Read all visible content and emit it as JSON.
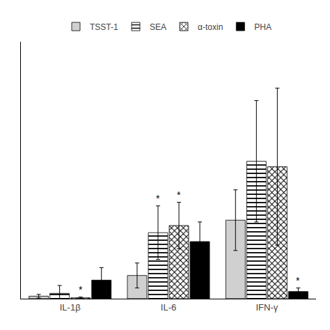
{
  "chart_data": {
    "type": "bar",
    "categories": [
      "IL-1β",
      "IL-6",
      "IFN-γ"
    ],
    "series": [
      {
        "name": "TSST-1",
        "color": "#d0d0d0",
        "values": [
          0.7,
          6.5,
          22.0
        ],
        "errors": [
          0.5,
          3.5,
          8.5
        ]
      },
      {
        "name": "SEA",
        "color": "white",
        "values": [
          1.5,
          18.5,
          38.5
        ],
        "errors": [
          2.2,
          7.5,
          17.0
        ]
      },
      {
        "name": "α-toxin",
        "color": "white",
        "values": [
          0.25,
          20.5,
          37.0
        ],
        "errors": [
          0.2,
          6.5,
          22.0
        ]
      },
      {
        "name": "PHA",
        "color": "black",
        "values": [
          5.2,
          16.0,
          2.0
        ],
        "errors": [
          3.5,
          5.5,
          1.0
        ]
      }
    ],
    "annotations": [
      {
        "text": "*",
        "category": "IL-1β",
        "series": "α-toxin"
      },
      {
        "text": "*",
        "category": "IL-6",
        "series": "SEA"
      },
      {
        "text": "*",
        "category": "IL-6",
        "series": "α-toxin"
      },
      {
        "text": "*",
        "category": "IFN-γ",
        "series": "PHA"
      }
    ],
    "ylim": [
      0,
      72
    ],
    "yticks": [],
    "tick_labels": "x",
    "grid": false,
    "legend": "top"
  }
}
